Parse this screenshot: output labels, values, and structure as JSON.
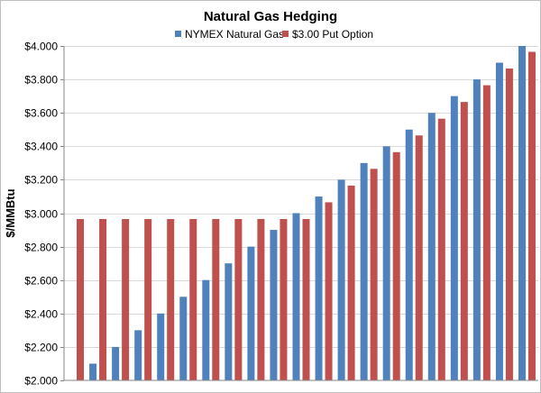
{
  "chart_data": {
    "type": "bar",
    "title": "Natural Gas Hedging",
    "xlabel": "",
    "ylabel": "$/MMBtu",
    "ylim": [
      2.0,
      4.0
    ],
    "ytick_step": 0.2,
    "ytick_prefix": "$",
    "ytick_decimals": 3,
    "grid": true,
    "legend_position": "top",
    "categories": [
      "",
      "",
      "",
      "",
      "",
      "",
      "",
      "",
      "",
      "",
      "",
      "",
      "",
      "",
      "",
      "",
      "",
      "",
      "",
      "",
      ""
    ],
    "series": [
      {
        "name": "NYMEX Natural Gas",
        "color": "#4f81bd",
        "values": [
          2.0,
          2.1,
          2.2,
          2.3,
          2.4,
          2.5,
          2.6,
          2.7,
          2.8,
          2.9,
          3.0,
          3.1,
          3.2,
          3.3,
          3.4,
          3.5,
          3.6,
          3.7,
          3.8,
          3.9,
          4.0
        ]
      },
      {
        "name": "$3.00 Put Option",
        "color": "#c0504d",
        "values": [
          2.965,
          2.965,
          2.965,
          2.965,
          2.965,
          2.965,
          2.965,
          2.965,
          2.965,
          2.965,
          2.965,
          3.065,
          3.165,
          3.265,
          3.365,
          3.465,
          3.565,
          3.665,
          3.765,
          3.865,
          3.965
        ]
      }
    ]
  }
}
